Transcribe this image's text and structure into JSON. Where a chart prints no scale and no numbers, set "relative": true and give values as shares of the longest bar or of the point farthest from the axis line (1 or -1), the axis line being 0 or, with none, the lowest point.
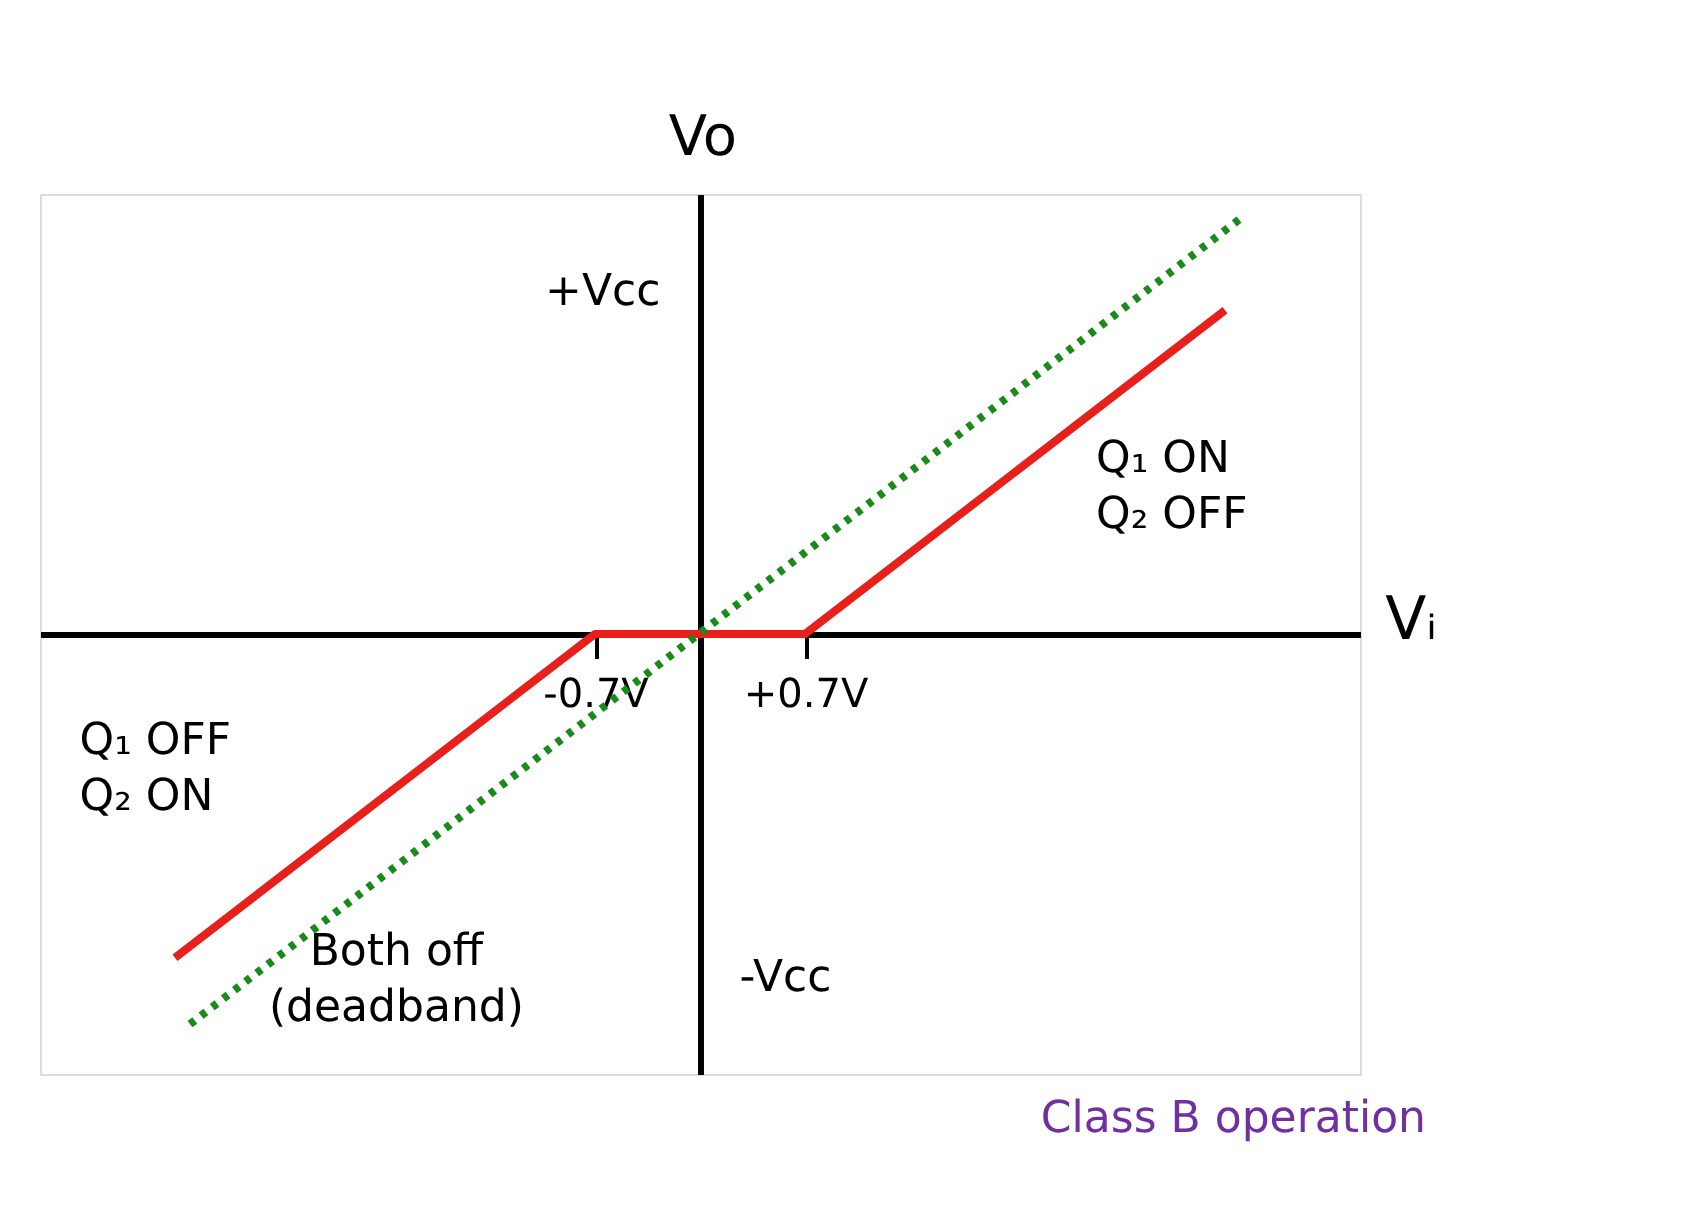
{
  "chart_data": {
    "type": "line",
    "relative": true,
    "xlabel": "Vᵢ",
    "ylabel": "Vo",
    "xlim": [
      -4.4,
      4.4
    ],
    "xticks": [
      {
        "value": -0.7,
        "label": "-0.7V"
      },
      {
        "value": 0.7,
        "label": "+0.7V"
      }
    ],
    "series": [
      {
        "color": "#e8201c",
        "line_style": "solid",
        "x": [
          -3.5,
          -0.7,
          0.7,
          3.5
        ],
        "values": [
          -0.78,
          0,
          0,
          0.78
        ]
      },
      {
        "color": "#1a8a1a",
        "line_style": "dotted",
        "x": [
          -3.4,
          3.6
        ],
        "values": [
          -0.94,
          1
        ]
      }
    ],
    "annotations": [
      "+Vcc",
      "-Vcc",
      "Q₁ ON\nQ₂ OFF",
      "Q₁ OFF\nQ₂ ON",
      "Both off\n(deadband)",
      "Class B operation"
    ],
    "grid": false,
    "legend": false,
    "marker": "none"
  }
}
